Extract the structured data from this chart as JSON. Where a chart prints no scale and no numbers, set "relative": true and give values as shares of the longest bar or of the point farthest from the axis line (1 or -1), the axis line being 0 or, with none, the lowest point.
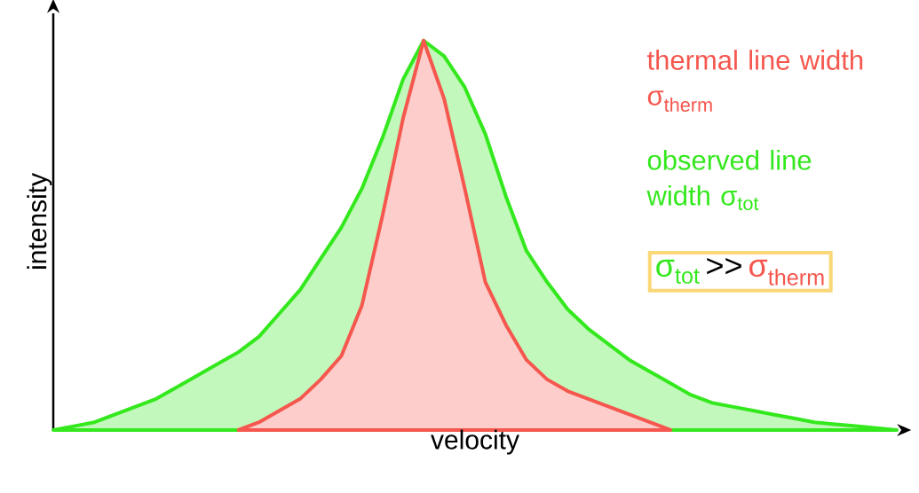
{
  "chart_data": {
    "type": "area",
    "relative": true,
    "xlabel": "velocity",
    "ylabel": "intensity",
    "categories": [
      null,
      null,
      null,
      null,
      null,
      null,
      null,
      null,
      null,
      null,
      null,
      null,
      null,
      null,
      null,
      null,
      null,
      null,
      null,
      null,
      null,
      null,
      null,
      null,
      null,
      null,
      null,
      null,
      null,
      null,
      null,
      null,
      null,
      null,
      null,
      null,
      null,
      null,
      null,
      null,
      null,
      null
    ],
    "series": [
      {
        "name": "observed line width σ$_{tot}$",
        "color": "#33e81c",
        "values": [
          0,
          0.01,
          0.02,
          0.04,
          0.06,
          0.08,
          0.11,
          0.14,
          0.17,
          0.2,
          0.24,
          0.3,
          0.36,
          0.44,
          0.52,
          0.62,
          0.75,
          0.9,
          1.0,
          0.96,
          0.88,
          0.76,
          0.6,
          0.46,
          0.38,
          0.31,
          0.26,
          0.22,
          0.18,
          0.15,
          0.12,
          0.09,
          0.07,
          0.06,
          0.05,
          0.04,
          0.03,
          0.02,
          0.015,
          0.01,
          0.005,
          0
        ]
      },
      {
        "name": "thermal line width σ$_{therm}$",
        "color": "#f5574e",
        "values": [
          null,
          null,
          null,
          null,
          null,
          null,
          null,
          null,
          null,
          0,
          0.02,
          0.05,
          0.08,
          0.13,
          0.19,
          0.32,
          0.55,
          0.8,
          1.0,
          0.85,
          0.62,
          0.38,
          0.27,
          0.18,
          0.13,
          0.1,
          0.08,
          0.06,
          0.04,
          0.02,
          0,
          null,
          null,
          null,
          null,
          null,
          null,
          null,
          null,
          null,
          null,
          null
        ]
      }
    ],
    "annotations": [
      "σ$_{tot}$",
      ">>",
      "σ$_{therm}$"
    ]
  }
}
